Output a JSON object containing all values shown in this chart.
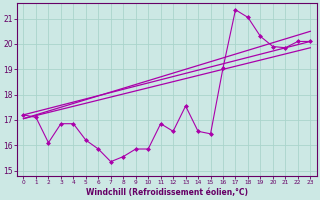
{
  "xlabel": "Windchill (Refroidissement éolien,°C)",
  "background_color": "#cce8e4",
  "grid_color": "#aad4cc",
  "line_color": "#aa00aa",
  "spine_color": "#660066",
  "xlim": [
    -0.5,
    23.5
  ],
  "ylim": [
    14.8,
    21.6
  ],
  "yticks": [
    15,
    16,
    17,
    18,
    19,
    20,
    21
  ],
  "xticks": [
    0,
    1,
    2,
    3,
    4,
    5,
    6,
    7,
    8,
    9,
    10,
    11,
    12,
    13,
    14,
    15,
    16,
    17,
    18,
    19,
    20,
    21,
    22,
    23
  ],
  "series": {
    "actual": {
      "x": [
        0,
        1,
        2,
        3,
        4,
        5,
        6,
        7,
        8,
        9,
        10,
        11,
        12,
        13,
        14,
        15,
        16,
        17,
        18,
        19,
        20,
        21,
        22,
        23
      ],
      "y": [
        17.2,
        17.1,
        16.1,
        16.85,
        16.85,
        16.2,
        15.85,
        15.35,
        15.55,
        15.85,
        15.85,
        16.85,
        16.55,
        17.55,
        16.55,
        16.45,
        19.05,
        21.35,
        21.05,
        20.3,
        19.9,
        19.85,
        20.1,
        20.1
      ]
    },
    "linear1": {
      "x": [
        0,
        23
      ],
      "y": [
        17.2,
        20.1
      ]
    },
    "linear2": {
      "x": [
        0,
        23
      ],
      "y": [
        17.05,
        20.5
      ]
    },
    "linear3": {
      "x": [
        0,
        23
      ],
      "y": [
        17.05,
        19.85
      ]
    }
  }
}
